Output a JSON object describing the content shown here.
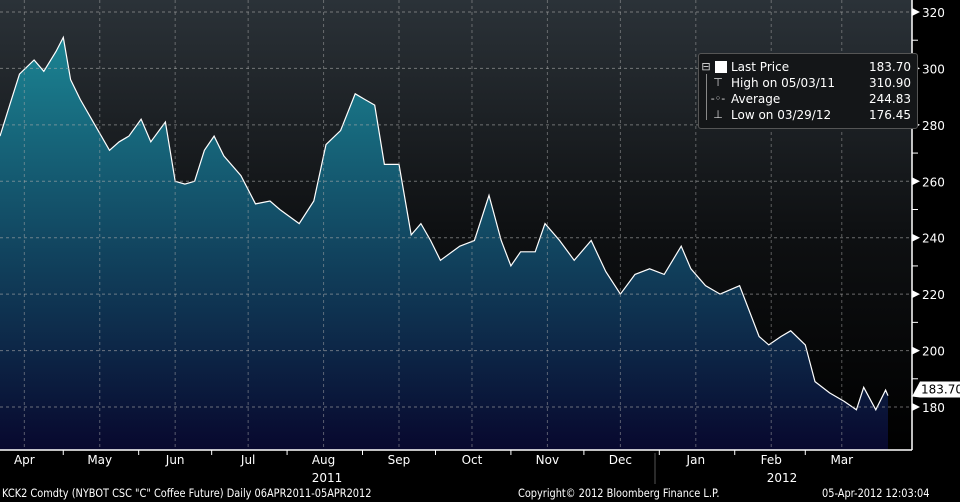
{
  "chart_data": {
    "type": "area",
    "title": "KCK2 Comdty (NYBOT CSC \"C\" Coffee Future)",
    "x_unit": "days since 06APR2011",
    "points": [
      [
        0,
        276
      ],
      [
        4,
        287
      ],
      [
        8,
        298
      ],
      [
        14,
        303
      ],
      [
        18,
        299
      ],
      [
        23,
        306
      ],
      [
        26,
        311
      ],
      [
        29,
        296
      ],
      [
        33,
        289
      ],
      [
        39,
        280
      ],
      [
        45,
        271
      ],
      [
        49,
        274
      ],
      [
        53,
        276
      ],
      [
        58,
        282
      ],
      [
        62,
        274
      ],
      [
        68,
        281
      ],
      [
        72,
        260
      ],
      [
        76,
        259
      ],
      [
        80,
        260
      ],
      [
        84,
        271
      ],
      [
        88,
        276
      ],
      [
        92,
        269
      ],
      [
        99,
        262
      ],
      [
        105,
        252
      ],
      [
        111,
        253
      ],
      [
        115,
        250
      ],
      [
        123,
        245
      ],
      [
        129,
        253
      ],
      [
        134,
        273
      ],
      [
        140,
        278
      ],
      [
        146,
        291
      ],
      [
        150,
        289
      ],
      [
        154,
        287
      ],
      [
        158,
        266
      ],
      [
        164,
        266
      ],
      [
        169,
        241
      ],
      [
        173,
        245
      ],
      [
        177,
        239
      ],
      [
        181,
        232
      ],
      [
        189,
        237
      ],
      [
        195,
        239
      ],
      [
        201,
        255
      ],
      [
        206,
        239
      ],
      [
        210,
        230
      ],
      [
        214,
        235
      ],
      [
        220,
        235
      ],
      [
        224,
        245
      ],
      [
        230,
        239
      ],
      [
        236,
        232
      ],
      [
        243,
        239
      ],
      [
        249,
        228
      ],
      [
        255,
        220
      ],
      [
        261,
        227
      ],
      [
        267,
        229
      ],
      [
        273,
        227
      ],
      [
        280,
        237
      ],
      [
        284,
        229
      ],
      [
        290,
        223
      ],
      [
        296,
        220
      ],
      [
        304,
        223
      ],
      [
        312,
        205
      ],
      [
        316,
        202
      ],
      [
        321,
        205
      ],
      [
        325,
        207
      ],
      [
        331,
        202
      ],
      [
        335,
        189
      ],
      [
        341,
        185
      ],
      [
        347,
        182
      ],
      [
        352,
        179
      ],
      [
        355,
        187
      ],
      [
        360,
        179
      ],
      [
        364,
        186
      ],
      [
        365,
        184
      ]
    ],
    "ylim": [
      160,
      325
    ],
    "y_ticks": [
      "320",
      "300",
      "280",
      "260",
      "240",
      "220",
      "200",
      "180"
    ],
    "y_tick_values": [
      320,
      300,
      280,
      260,
      240,
      220,
      200,
      180
    ],
    "x_ticks": [
      "Apr",
      "May",
      "Jun",
      "Jul",
      "Aug",
      "Sep",
      "Oct",
      "Nov",
      "Dec",
      "Jan",
      "Feb",
      "Mar"
    ],
    "x_tick_days": [
      10,
      41,
      72,
      102,
      133,
      164,
      194,
      225,
      255,
      286,
      317,
      346
    ],
    "years": [
      "2011",
      "2012"
    ],
    "last_price_tag": "183.70",
    "legend": {
      "placement": "top-right",
      "rows": [
        {
          "label": "Last Price",
          "value": "183.70",
          "icon": "square-icon"
        },
        {
          "label": "High on 05/03/11",
          "value": "310.90",
          "icon": "high-marker-icon"
        },
        {
          "label": "Average",
          "value": "244.83",
          "icon": "average-marker-icon"
        },
        {
          "label": "Low on 03/29/12",
          "value": "176.45",
          "icon": "low-marker-icon"
        }
      ]
    },
    "grid": true,
    "colors": {
      "line": "#ffffff",
      "fill_top": "#1b8493",
      "fill_bottom": "#08082e"
    }
  },
  "footer": {
    "ticker": "KCK2 Comdty (NYBOT CSC \"C\" Coffee Future)  Daily 06APR2011-05APR2012",
    "copyright": "Copyright© 2012 Bloomberg Finance L.P.",
    "timestamp": "05-Apr-2012 12:03:04"
  }
}
